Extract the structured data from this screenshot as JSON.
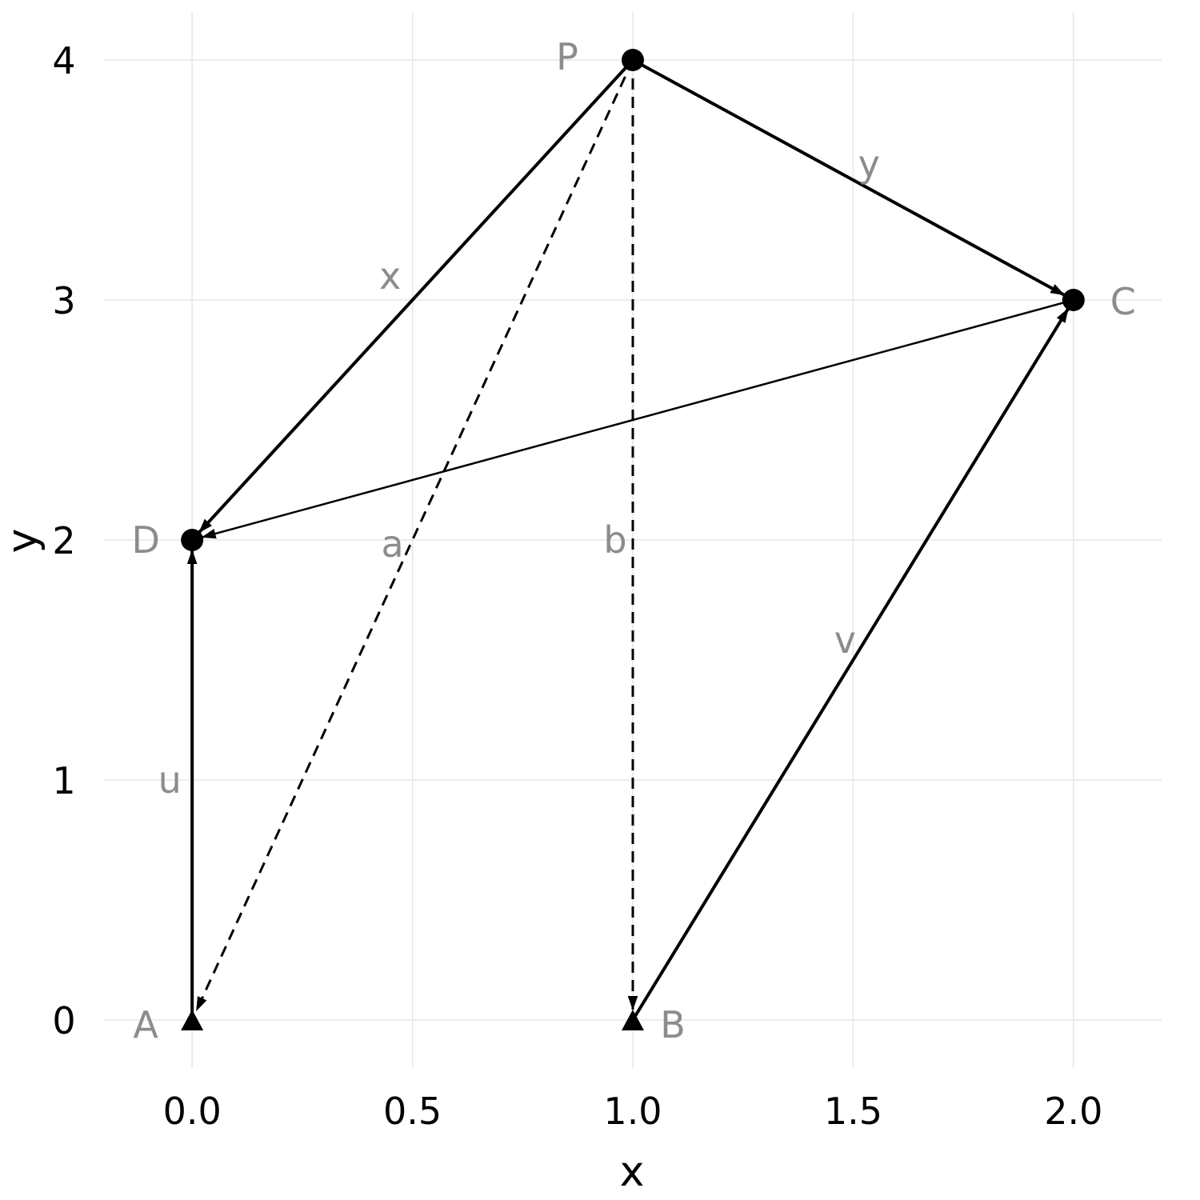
{
  "chart_data": {
    "type": "scatter",
    "xlabel": "x",
    "ylabel": "y",
    "xlim": [
      -0.2,
      2.2
    ],
    "ylim": [
      -0.2,
      4.2
    ],
    "x_ticks": [
      "0.0",
      "0.5",
      "1.0",
      "1.5",
      "2.0"
    ],
    "x_tick_values": [
      0,
      0.5,
      1,
      1.5,
      2
    ],
    "y_ticks": [
      "0",
      "1",
      "2",
      "3",
      "4"
    ],
    "y_tick_values": [
      0,
      1,
      2,
      3,
      4
    ],
    "grid": true,
    "points": [
      {
        "label": "A",
        "x": 0,
        "y": 0,
        "marker": "triangle"
      },
      {
        "label": "B",
        "x": 1,
        "y": 0,
        "marker": "triangle"
      },
      {
        "label": "C",
        "x": 2,
        "y": 3,
        "marker": "circle"
      },
      {
        "label": "D",
        "x": 0,
        "y": 2,
        "marker": "circle"
      },
      {
        "label": "P",
        "x": 1,
        "y": 4,
        "marker": "circle"
      }
    ],
    "vectors": [
      {
        "label": "x",
        "from": "P",
        "to": "D",
        "style": "solid"
      },
      {
        "label": "y",
        "from": "P",
        "to": "C",
        "style": "solid"
      },
      {
        "label": "a",
        "from": "P",
        "to": "A",
        "style": "dashed"
      },
      {
        "label": "b",
        "from": "P",
        "to": "B",
        "style": "dashed"
      },
      {
        "label": "u",
        "from": "A",
        "to": "D",
        "style": "solid"
      },
      {
        "label": "v",
        "from": "B",
        "to": "C",
        "style": "solid"
      },
      {
        "label": "",
        "from": "C",
        "to": "D",
        "style": "thin"
      }
    ],
    "colors": {
      "line": "#000000",
      "label": "#8c8c8c",
      "grid": "#e6e6e6"
    }
  }
}
